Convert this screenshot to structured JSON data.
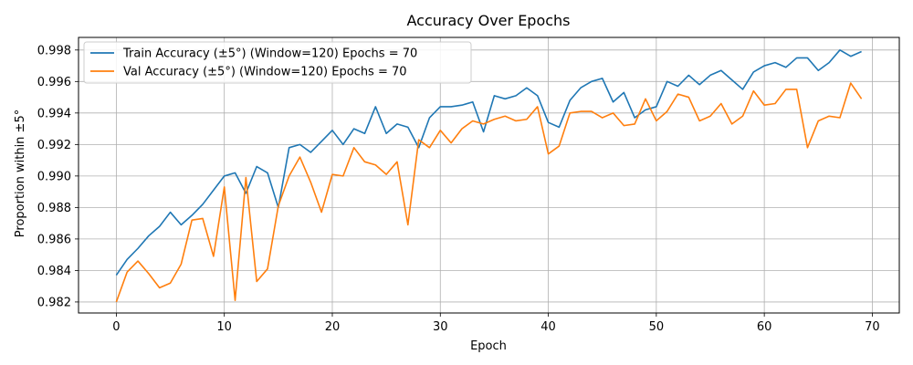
{
  "chart_data": {
    "type": "line",
    "title": "Accuracy Over Epochs",
    "xlabel": "Epoch",
    "ylabel": "Proportion within ±5°",
    "xlim": [
      -3.5,
      72.5
    ],
    "ylim": [
      0.9813,
      0.9988
    ],
    "xticks": [
      0,
      10,
      20,
      30,
      40,
      50,
      60,
      70
    ],
    "yticks": [
      0.982,
      0.984,
      0.986,
      0.988,
      0.99,
      0.992,
      0.994,
      0.996,
      0.998
    ],
    "ytick_labels": [
      "0.982",
      "0.984",
      "0.986",
      "0.988",
      "0.990",
      "0.992",
      "0.994",
      "0.996",
      "0.998"
    ],
    "grid": true,
    "legend_position": "top-left",
    "x": [
      0,
      1,
      2,
      3,
      4,
      5,
      6,
      7,
      8,
      9,
      10,
      11,
      12,
      13,
      14,
      15,
      16,
      17,
      18,
      19,
      20,
      21,
      22,
      23,
      24,
      25,
      26,
      27,
      28,
      29,
      30,
      31,
      32,
      33,
      34,
      35,
      36,
      37,
      38,
      39,
      40,
      41,
      42,
      43,
      44,
      45,
      46,
      47,
      48,
      49,
      50,
      51,
      52,
      53,
      54,
      55,
      56,
      57,
      58,
      59,
      60,
      61,
      62,
      63,
      64,
      65,
      66,
      67,
      68,
      69
    ],
    "series": [
      {
        "name": "Train Accuracy (±5°) (Window=120) Epochs = 70",
        "color": "#1f77b4",
        "values": [
          0.9837,
          0.9847,
          0.9854,
          0.9862,
          0.9868,
          0.9877,
          0.9869,
          0.9875,
          0.9882,
          0.9891,
          0.99,
          0.9902,
          0.9889,
          0.9906,
          0.9902,
          0.988,
          0.9918,
          0.992,
          0.9915,
          0.9922,
          0.9929,
          0.992,
          0.993,
          0.9927,
          0.9944,
          0.9927,
          0.9933,
          0.9931,
          0.9918,
          0.9937,
          0.9944,
          0.9944,
          0.9945,
          0.9947,
          0.9928,
          0.9951,
          0.9949,
          0.9951,
          0.9956,
          0.9951,
          0.9934,
          0.9931,
          0.9948,
          0.9956,
          0.996,
          0.9962,
          0.9947,
          0.9953,
          0.9937,
          0.9942,
          0.9944,
          0.996,
          0.9957,
          0.9964,
          0.9958,
          0.9964,
          0.9967,
          0.9961,
          0.9955,
          0.9966,
          0.997,
          0.9972,
          0.9969,
          0.9975,
          0.9975,
          0.9967,
          0.9972,
          0.998,
          0.9976,
          0.9979
        ]
      },
      {
        "name": "Val Accuracy (±5°) (Window=120) Epochs = 70",
        "color": "#ff7f0e",
        "values": [
          0.982,
          0.9839,
          0.9846,
          0.9838,
          0.9829,
          0.9832,
          0.9844,
          0.9872,
          0.9873,
          0.9849,
          0.9893,
          0.9821,
          0.9899,
          0.9833,
          0.9841,
          0.9881,
          0.99,
          0.9912,
          0.9896,
          0.9877,
          0.9901,
          0.99,
          0.9918,
          0.9909,
          0.9907,
          0.9901,
          0.9909,
          0.9869,
          0.9923,
          0.9918,
          0.9929,
          0.9921,
          0.993,
          0.9935,
          0.9933,
          0.9936,
          0.9938,
          0.9935,
          0.9936,
          0.9944,
          0.9914,
          0.9919,
          0.994,
          0.9941,
          0.9941,
          0.9937,
          0.994,
          0.9932,
          0.9933,
          0.9949,
          0.9935,
          0.9941,
          0.9952,
          0.995,
          0.9935,
          0.9938,
          0.9946,
          0.9933,
          0.9938,
          0.9954,
          0.9945,
          0.9946,
          0.9955,
          0.9955,
          0.9918,
          0.9935,
          0.9938,
          0.9937,
          0.9959,
          0.9949
        ]
      }
    ]
  }
}
